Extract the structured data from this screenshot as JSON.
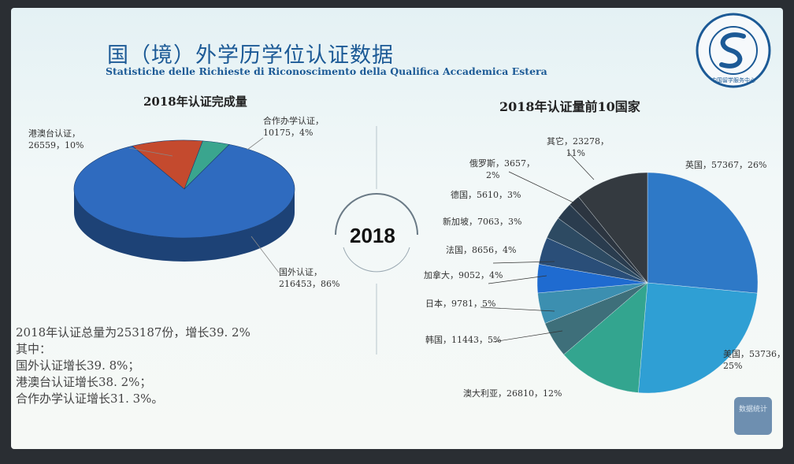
{
  "title_cn": "国（境）外学历学位认证数据",
  "title_it": "Statistiche delle Richieste di Riconoscimento della Qualifica Accademica Estera",
  "center_year": "2018",
  "logo_text": "中国留学服务中心",
  "button_label": "数据统计",
  "stats": [
    "2018年认证总量为253187份，增长39. 2%",
    "其中：",
    "国外认证增长39. 8%；",
    "港澳台认证增长38. 2%；",
    "合作办学认证增长31. 3%。"
  ],
  "chart_data": [
    {
      "type": "pie",
      "title": "2018年认证完成量",
      "slices": [
        {
          "label": "国外认证，",
          "value": 216453,
          "pct": "86%",
          "color": "#2f6bbf"
        },
        {
          "label": "港澳台认证，",
          "value": 26559,
          "pct": "10%",
          "color": "#c44a2e"
        },
        {
          "label": "合作办学认证，",
          "value": 10175,
          "pct": "4%",
          "color": "#3aa58e"
        }
      ]
    },
    {
      "type": "pie",
      "title": "2018年认证量前10国家",
      "slices": [
        {
          "label": "英国",
          "value": 57367,
          "pct": "26%",
          "color": "#2e79c7"
        },
        {
          "label": "美国",
          "value": 53736,
          "pct": "25%",
          "color": "#2f9fd4"
        },
        {
          "label": "澳大利亚",
          "value": 26810,
          "pct": "12%",
          "color": "#33a58f"
        },
        {
          "label": "韩国",
          "value": 11443,
          "pct": "5%",
          "color": "#3e6f7a"
        },
        {
          "label": "日本",
          "value": 9781,
          "pct": "5%",
          "color": "#3c8fb0"
        },
        {
          "label": "加拿大",
          "value": 9052,
          "pct": "4%",
          "color": "#1f6bd0"
        },
        {
          "label": "法国",
          "value": 8656,
          "pct": "4%",
          "color": "#2a4e78"
        },
        {
          "label": "新加坡",
          "value": 7063,
          "pct": "3%",
          "color": "#2d4a62"
        },
        {
          "label": "德国",
          "value": 5610,
          "pct": "3%",
          "color": "#2a3c4e"
        },
        {
          "label": "俄罗斯",
          "value": 3657,
          "pct": "2%",
          "color": "#2c3540"
        },
        {
          "label": "其它",
          "value": 23278,
          "pct": "11%",
          "color": "#343a40"
        }
      ]
    }
  ]
}
